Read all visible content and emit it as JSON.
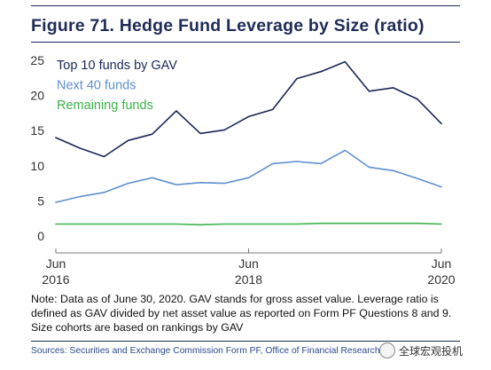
{
  "figure": {
    "title": "Figure 71. Hedge Fund Leverage by Size (ratio)",
    "note": "Note: Data as of June 30, 2020. GAV stands for gross asset value. Leverage ratio is defined as GAV divided by net asset value as reported on Form PF Questions 8 and 9. Size cohorts are based on rankings by GAV",
    "sources": "Sources: Securities and Exchange Commission Form PF, Office of Financial Research",
    "watermark": "全球宏观投机"
  },
  "chart_data": {
    "type": "line",
    "title": "Figure 71. Hedge Fund Leverage by Size (ratio)",
    "xlabel": "",
    "ylabel": "",
    "x": [
      "2016-06",
      "2016-09",
      "2016-12",
      "2017-03",
      "2017-06",
      "2017-09",
      "2017-12",
      "2018-03",
      "2018-06",
      "2018-09",
      "2018-12",
      "2019-03",
      "2019-06",
      "2019-09",
      "2019-12",
      "2020-03",
      "2020-06"
    ],
    "x_ticks": [
      {
        "index": 0,
        "lines": [
          "Jun",
          "2016"
        ]
      },
      {
        "index": 8,
        "lines": [
          "Jun",
          "2018"
        ]
      },
      {
        "index": 16,
        "lines": [
          "Jun",
          "2020"
        ]
      }
    ],
    "ylim": [
      0,
      25
    ],
    "y_ticks": [
      0,
      5,
      10,
      15,
      20,
      25
    ],
    "grid": false,
    "legend_position": "top-left",
    "series": [
      {
        "name": "Top 10 funds by GAV",
        "color": "#1c2657",
        "values": [
          14.0,
          12.5,
          11.3,
          13.6,
          14.5,
          17.8,
          14.6,
          15.1,
          17.0,
          18.0,
          22.4,
          23.4,
          24.8,
          20.6,
          21.1,
          19.5,
          16.0
        ]
      },
      {
        "name": "Next 40 funds",
        "color": "#5f8fd0",
        "values": [
          4.8,
          5.6,
          6.2,
          7.5,
          8.3,
          7.3,
          7.6,
          7.5,
          8.3,
          10.3,
          10.6,
          10.3,
          12.2,
          9.8,
          9.3,
          8.2,
          7.0
        ]
      },
      {
        "name": "Remaining funds",
        "color": "#3bb24a",
        "values": [
          1.7,
          1.7,
          1.7,
          1.7,
          1.7,
          1.7,
          1.6,
          1.7,
          1.7,
          1.7,
          1.7,
          1.8,
          1.8,
          1.8,
          1.8,
          1.8,
          1.7
        ]
      }
    ]
  }
}
